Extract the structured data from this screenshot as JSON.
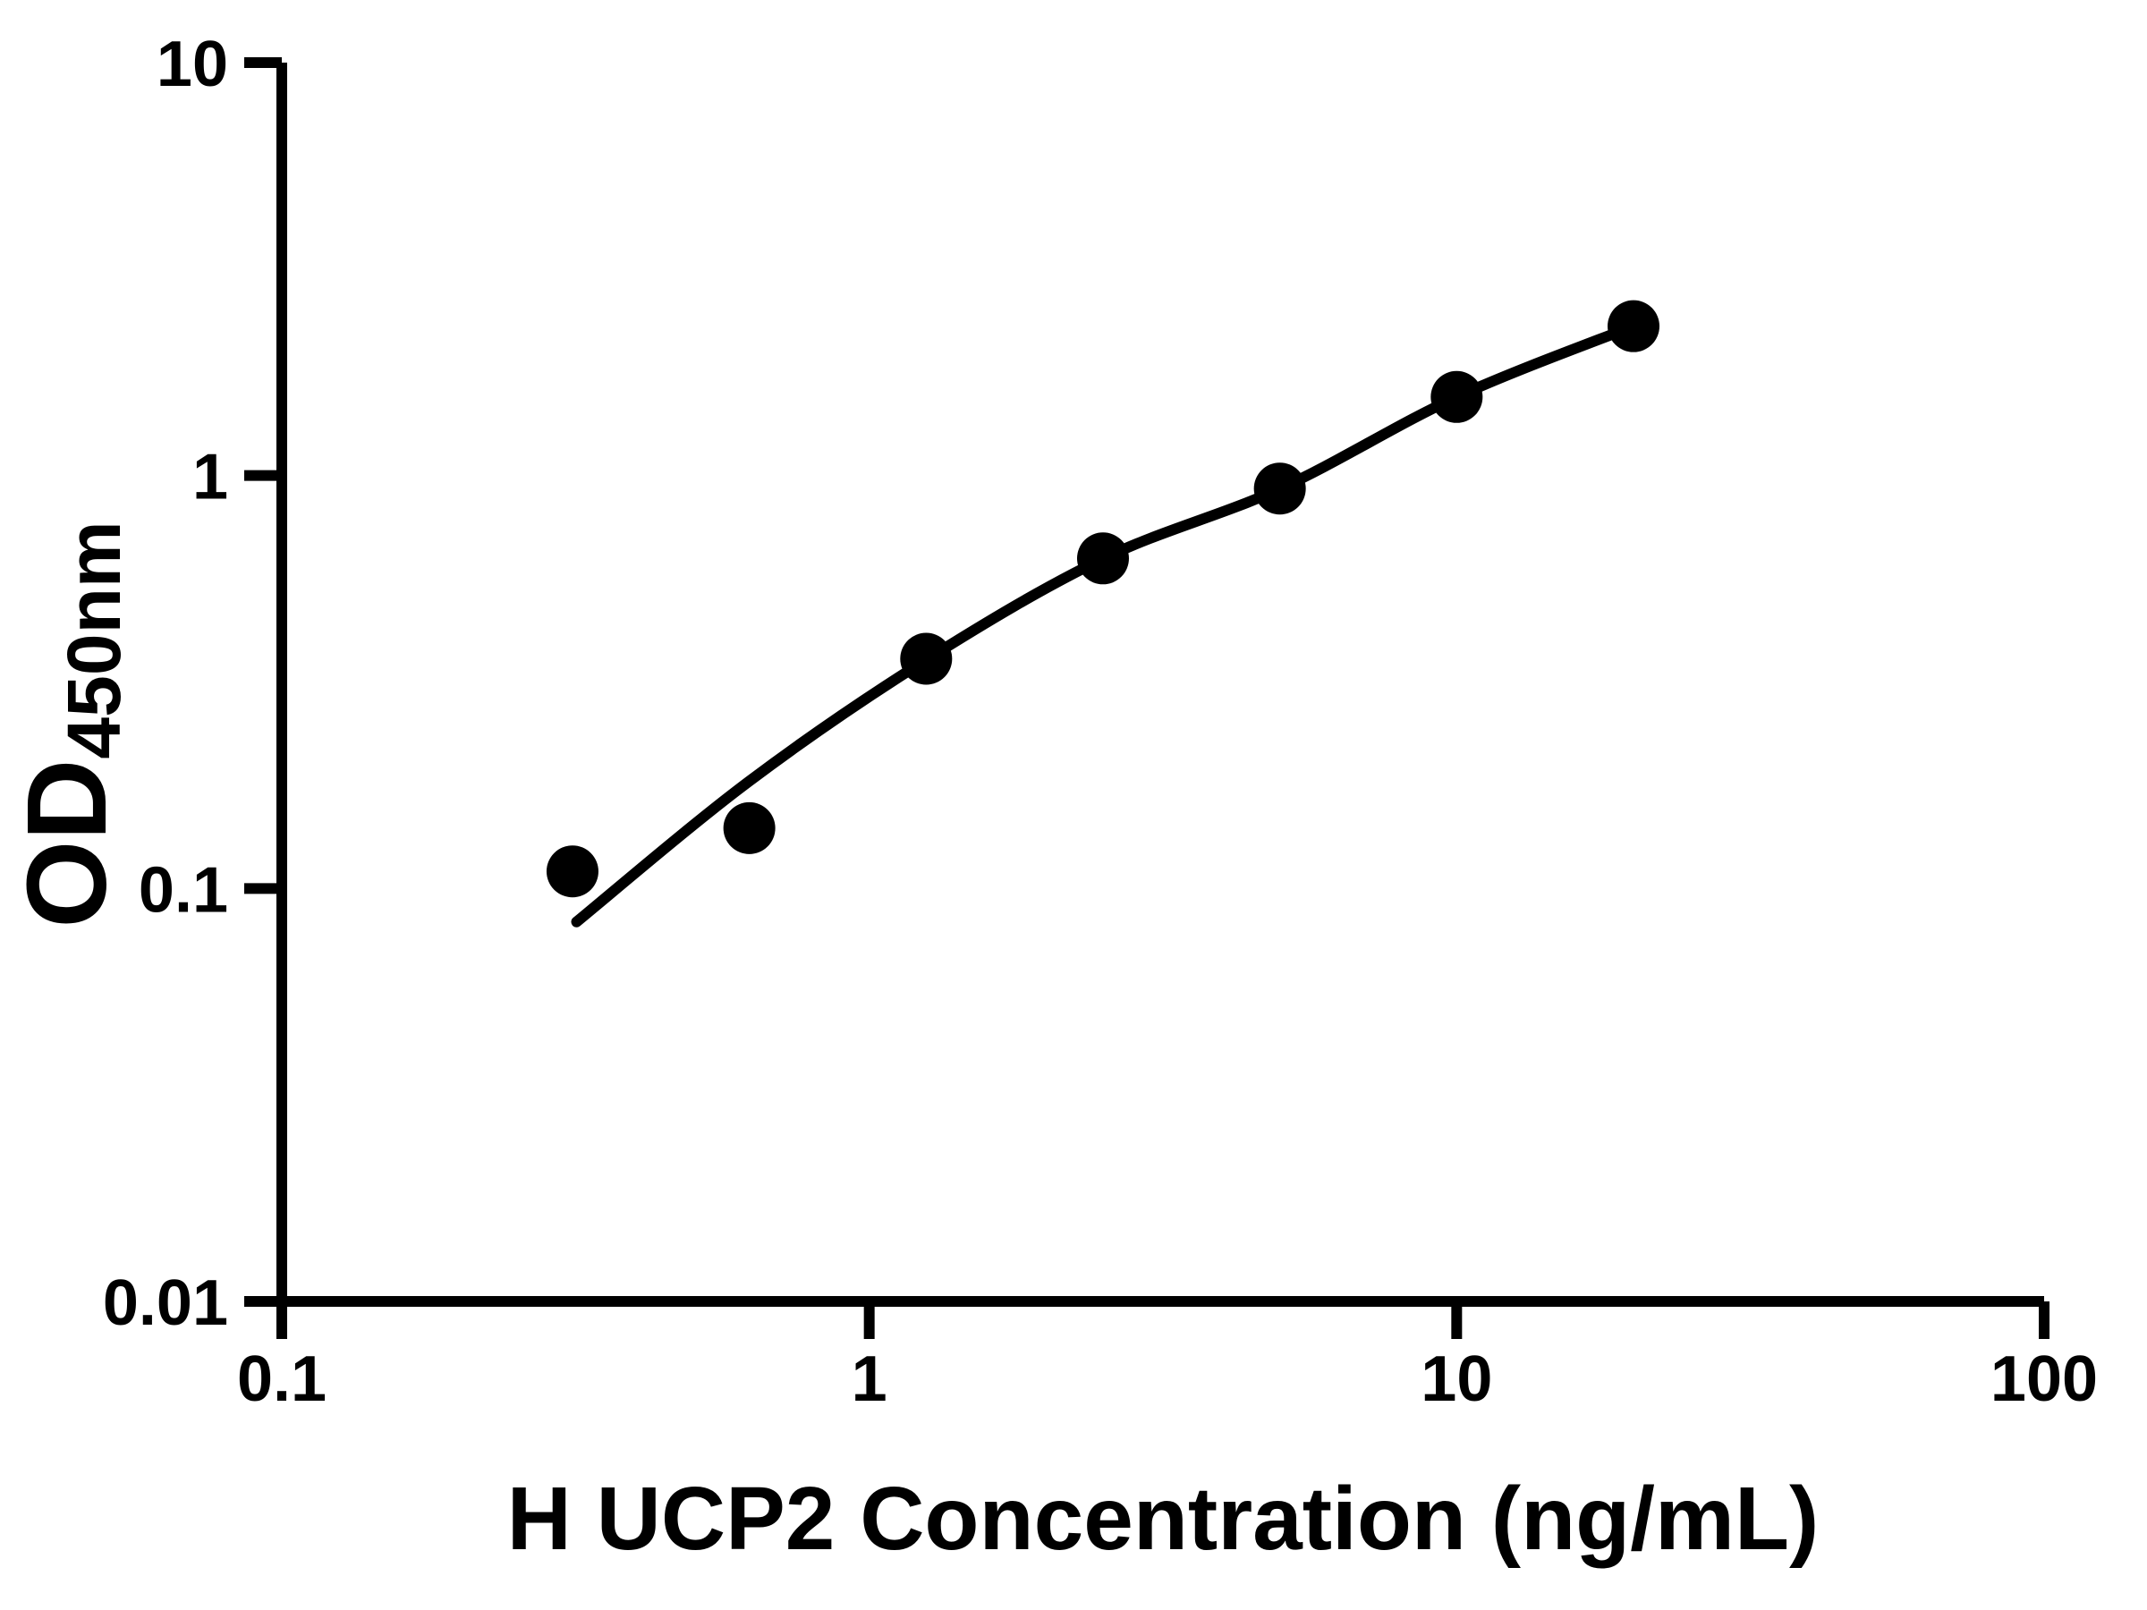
{
  "page": {
    "background_color": "#ffffff",
    "foreground_color": "#000000"
  },
  "chart_data": {
    "type": "scatter",
    "title": "",
    "xlabel": "H UCP2 Concentration (ng/mL)",
    "ylabel_main": "OD",
    "ylabel_sub": "450nm",
    "x_scale": "log",
    "y_scale": "log",
    "xlim": [
      0.1,
      100
    ],
    "ylim": [
      0.01,
      10
    ],
    "grid": false,
    "legend": false,
    "marker_shape": "filled-circle",
    "marker_color": "#000000",
    "line_color": "#000000",
    "axis_color": "#000000",
    "x_ticks": [
      {
        "value": 0.1,
        "label": "0.1"
      },
      {
        "value": 1,
        "label": "1"
      },
      {
        "value": 10,
        "label": "10"
      },
      {
        "value": 100,
        "label": "100"
      }
    ],
    "y_ticks": [
      {
        "value": 0.01,
        "label": "0.01"
      },
      {
        "value": 0.1,
        "label": "0.1"
      },
      {
        "value": 1,
        "label": "1"
      },
      {
        "value": 10,
        "label": "10"
      }
    ],
    "series": [
      {
        "name": "standard-curve-points",
        "points": [
          {
            "x": 0.3125,
            "y": 0.11
          },
          {
            "x": 0.625,
            "y": 0.14
          },
          {
            "x": 1.25,
            "y": 0.36
          },
          {
            "x": 2.5,
            "y": 0.63
          },
          {
            "x": 5,
            "y": 0.93
          },
          {
            "x": 10,
            "y": 1.55
          },
          {
            "x": 20,
            "y": 2.3
          }
        ]
      }
    ],
    "fit_curve": {
      "name": "four-parameter-fit-line",
      "points": [
        {
          "x": 0.3175,
          "y": 0.083
        },
        {
          "x": 0.625,
          "y": 0.182
        },
        {
          "x": 1.25,
          "y": 0.358
        },
        {
          "x": 2.5,
          "y": 0.629
        },
        {
          "x": 5,
          "y": 0.929
        },
        {
          "x": 10,
          "y": 1.55
        },
        {
          "x": 20,
          "y": 2.3
        }
      ]
    }
  }
}
